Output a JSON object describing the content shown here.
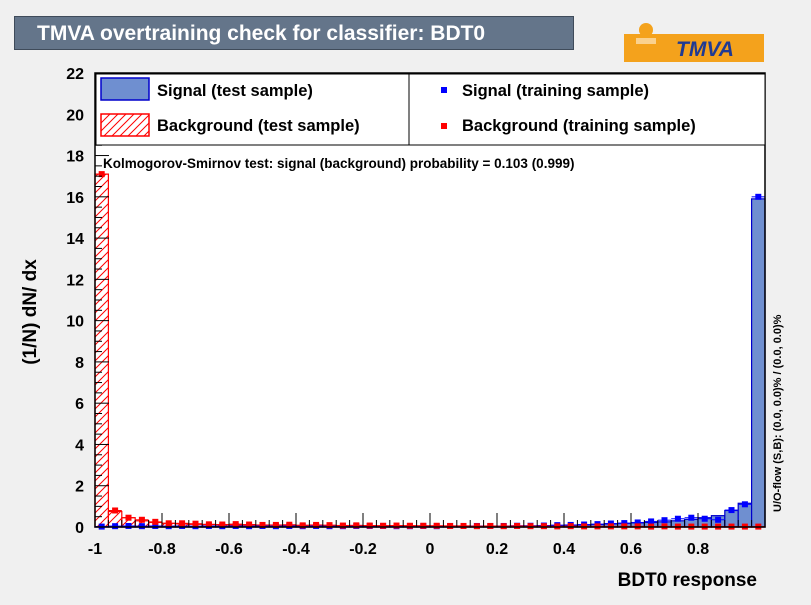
{
  "header": {
    "title": "TMVA overtraining check for classifier: BDT0",
    "logo_text": "TMVA"
  },
  "colors": {
    "signal_fill": "#6f8fd0",
    "signal_line": "#0000cc",
    "signal_marker": "#0000ff",
    "background_line": "#ff0000",
    "background_marker": "#ff0000",
    "title_bg": "#64758a",
    "logo_orange": "#f4a21c"
  },
  "legend": {
    "signal_test": "Signal (test sample)",
    "background_test": "Background (test sample)",
    "signal_train": "Signal (training sample)",
    "background_train": "Background (training sample)"
  },
  "ks_text": "Kolmogorov-Smirnov test: signal (background) probability = 0.103 (0.999)",
  "overflow_text": "U/O-flow (S,B): (0.0, 0.0)% / (0.0, 0.0)%",
  "chart_data": {
    "type": "bar",
    "xlabel": "BDT0 response",
    "ylabel": "(1/N) dN/ dx",
    "xlim": [
      -1,
      1
    ],
    "ylim": [
      0,
      22
    ],
    "x_ticks": [
      "-1",
      "-0.8",
      "-0.6",
      "-0.4",
      "-0.2",
      "0",
      "0.2",
      "0.4",
      "0.6",
      "0.8"
    ],
    "y_ticks": [
      "0",
      "2",
      "4",
      "6",
      "8",
      "10",
      "12",
      "14",
      "16",
      "18",
      "20",
      "22"
    ],
    "bin_edges_start": -1,
    "bin_width": 0.04,
    "series": [
      {
        "name": "Signal (test sample)",
        "kind": "hist-filled",
        "values": [
          0.02,
          0.03,
          0.03,
          0.03,
          0.03,
          0.03,
          0.03,
          0.03,
          0.03,
          0.03,
          0.03,
          0.03,
          0.03,
          0.03,
          0.03,
          0.03,
          0.03,
          0.03,
          0.03,
          0.03,
          0.03,
          0.03,
          0.03,
          0.03,
          0.03,
          0.03,
          0.03,
          0.03,
          0.04,
          0.04,
          0.04,
          0.05,
          0.05,
          0.06,
          0.07,
          0.08,
          0.1,
          0.12,
          0.15,
          0.17,
          0.2,
          0.22,
          0.25,
          0.3,
          0.37,
          0.45,
          0.55,
          0.8,
          1.15,
          15.9
        ]
      },
      {
        "name": "Background (test sample)",
        "kind": "hist-hatched",
        "values": [
          17.1,
          0.75,
          0.45,
          0.3,
          0.22,
          0.18,
          0.15,
          0.13,
          0.12,
          0.11,
          0.1,
          0.1,
          0.09,
          0.09,
          0.08,
          0.08,
          0.08,
          0.07,
          0.07,
          0.07,
          0.06,
          0.06,
          0.06,
          0.06,
          0.05,
          0.05,
          0.05,
          0.05,
          0.04,
          0.04,
          0.04,
          0.04,
          0.04,
          0.03,
          0.03,
          0.03,
          0.03,
          0.03,
          0.03,
          0.03,
          0.02,
          0.02,
          0.02,
          0.02,
          0.02,
          0.02,
          0.02,
          0.02,
          0.02,
          0.02
        ]
      },
      {
        "name": "Signal (training sample)",
        "kind": "points",
        "values": [
          0.02,
          0.04,
          0.05,
          0.04,
          0.05,
          0.04,
          0.05,
          0.04,
          0.05,
          0.04,
          0.05,
          0.04,
          0.05,
          0.04,
          0.05,
          0.04,
          0.05,
          0.04,
          0.04,
          0.05,
          0.05,
          0.05,
          0.04,
          0.04,
          0.05,
          0.04,
          0.05,
          0.05,
          0.05,
          0.05,
          0.05,
          0.06,
          0.06,
          0.07,
          0.09,
          0.1,
          0.12,
          0.14,
          0.17,
          0.19,
          0.22,
          0.27,
          0.33,
          0.4,
          0.45,
          0.4,
          0.35,
          0.82,
          1.1,
          16.0
        ]
      },
      {
        "name": "Background (training sample)",
        "kind": "points",
        "values": [
          17.1,
          0.8,
          0.45,
          0.35,
          0.25,
          0.18,
          0.18,
          0.16,
          0.13,
          0.12,
          0.14,
          0.12,
          0.1,
          0.1,
          0.11,
          0.08,
          0.1,
          0.09,
          0.07,
          0.08,
          0.07,
          0.06,
          0.07,
          0.06,
          0.06,
          0.06,
          0.05,
          0.05,
          0.04,
          0.05,
          0.04,
          0.05,
          0.04,
          0.04,
          0.03,
          0.04,
          0.03,
          0.03,
          0.03,
          0.03,
          0.03,
          0.02,
          0.03,
          0.02,
          0.02,
          0.02,
          0.02,
          0.02,
          0.02,
          0.02
        ]
      }
    ]
  }
}
